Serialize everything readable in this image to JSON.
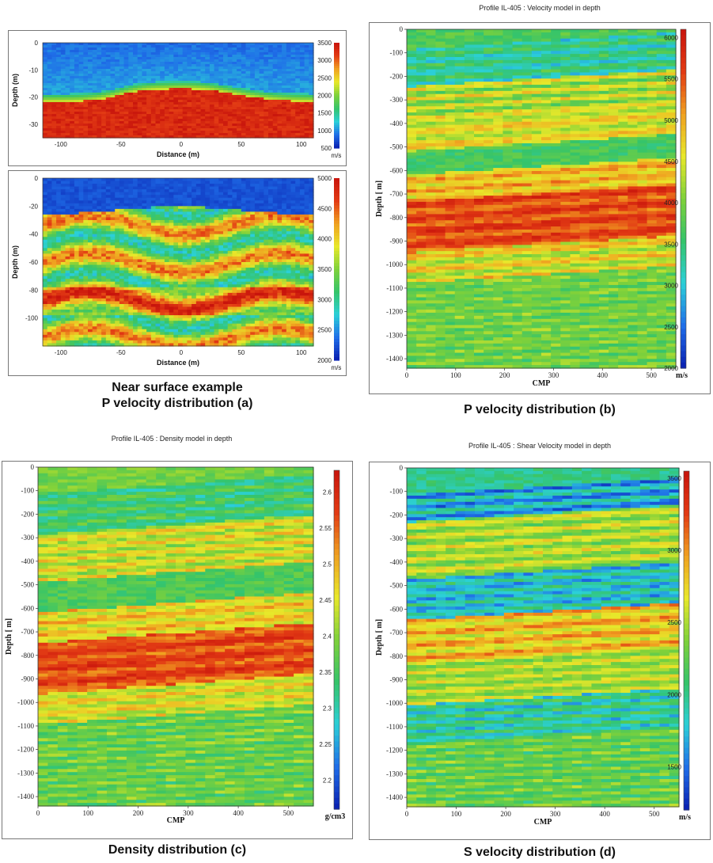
{
  "captions": {
    "a_line1": "Near surface example",
    "a_line2": "P velocity distribution (a)",
    "b": "P velocity distribution (b)",
    "c": "Density distribution (c)",
    "d": "S velocity distribution (d)"
  },
  "chart_data": [
    {
      "id": "a1",
      "type": "heatmap",
      "title": "",
      "xlabel": "Distance (m)",
      "ylabel": "Depth (m)",
      "x_ticks": [
        -100,
        -50,
        0,
        50,
        100
      ],
      "y_ticks": [
        0,
        -10,
        -20,
        -30
      ],
      "xlim": [
        -115,
        110
      ],
      "ylim": [
        -35,
        0
      ],
      "colorbar": {
        "ticks": [
          3500,
          3000,
          2500,
          2000,
          1500,
          1000,
          500
        ],
        "unit": "m/s",
        "range": [
          500,
          3500
        ]
      }
    },
    {
      "id": "a2",
      "type": "heatmap",
      "title": "",
      "xlabel": "Distance (m)",
      "ylabel": "Depth (m)",
      "x_ticks": [
        -100,
        -50,
        0,
        50,
        100
      ],
      "y_ticks": [
        0,
        -20,
        -40,
        -60,
        -80,
        -100
      ],
      "xlim": [
        -115,
        110
      ],
      "ylim": [
        -120,
        0
      ],
      "colorbar": {
        "ticks": [
          5000,
          4500,
          4000,
          3500,
          3000,
          2500,
          2000
        ],
        "unit": "m/s",
        "range": [
          2000,
          5000
        ]
      }
    },
    {
      "id": "b",
      "type": "heatmap",
      "title": "Profile IL-405 : Velocity model in depth",
      "xlabel": "CMP",
      "ylabel": "Depth [ m]",
      "x_ticks": [
        0,
        100,
        200,
        300,
        400,
        500
      ],
      "y_ticks": [
        0,
        -100,
        -200,
        -300,
        -400,
        -500,
        -600,
        -700,
        -800,
        -900,
        -1000,
        -1100,
        -1200,
        -1300,
        -1400
      ],
      "xlim": [
        0,
        550
      ],
      "ylim": [
        -1440,
        0
      ],
      "colorbar": {
        "ticks": [
          6000,
          5500,
          5000,
          4500,
          4000,
          3500,
          3000,
          2500,
          2000
        ],
        "unit": "m/s",
        "range": [
          2000,
          6100
        ]
      }
    },
    {
      "id": "c",
      "type": "heatmap",
      "title": "Profile IL-405 : Density model in depth",
      "xlabel": "CMP",
      "ylabel": "Depth [ m]",
      "x_ticks": [
        0,
        100,
        200,
        300,
        400,
        500
      ],
      "y_ticks": [
        0,
        -100,
        -200,
        -300,
        -400,
        -500,
        -600,
        -700,
        -800,
        -900,
        -1000,
        -1100,
        -1200,
        -1300,
        -1400
      ],
      "xlim": [
        0,
        550
      ],
      "ylim": [
        -1440,
        0
      ],
      "colorbar": {
        "ticks": [
          "2.6",
          "2.55",
          "2.5",
          "2.45",
          "2.4",
          "2.35",
          "2.3",
          "2.25",
          "2.2"
        ],
        "unit": "g/cm3",
        "range": [
          2.16,
          2.63
        ]
      }
    },
    {
      "id": "d",
      "type": "heatmap",
      "title": "Profile IL-405 : Shear Velocity model in depth",
      "xlabel": "CMP",
      "ylabel": "Depth [ m]",
      "x_ticks": [
        0,
        100,
        200,
        300,
        400,
        500
      ],
      "y_ticks": [
        0,
        -100,
        -200,
        -300,
        -400,
        -500,
        -600,
        -700,
        -800,
        -900,
        -1000,
        -1100,
        -1200,
        -1300,
        -1400
      ],
      "xlim": [
        0,
        550
      ],
      "ylim": [
        -1440,
        0
      ],
      "colorbar": {
        "ticks": [
          3500,
          3000,
          2500,
          2000,
          1500
        ],
        "unit": "m/s",
        "range": [
          1200,
          3550
        ]
      }
    }
  ],
  "colors": {
    "colormap": [
      "#0a1fb0",
      "#1f6ee8",
      "#2bd0d8",
      "#35c46a",
      "#7fd13a",
      "#e8e82a",
      "#f0a020",
      "#e23a14",
      "#c8140c"
    ]
  }
}
